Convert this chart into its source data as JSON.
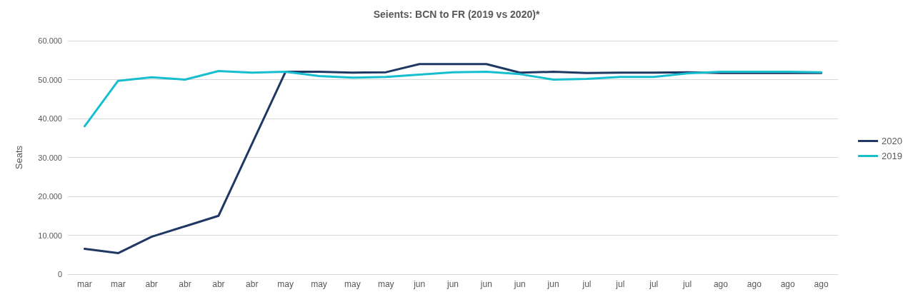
{
  "chart_data": {
    "type": "line",
    "title": "Seients: BCN to FR (2019 vs 2020)*",
    "ylabel": "Seats",
    "categories": [
      "mar",
      "mar",
      "abr",
      "abr",
      "abr",
      "abr",
      "may",
      "may",
      "may",
      "may",
      "jun",
      "jun",
      "jun",
      "jun",
      "jun",
      "jul",
      "jul",
      "jul",
      "jul",
      "ago",
      "ago",
      "ago",
      "ago"
    ],
    "series": [
      {
        "name": "2020",
        "color": "#1f3864",
        "values": [
          6500,
          5400,
          9600,
          12300,
          15000,
          33500,
          52000,
          52000,
          51800,
          51900,
          54000,
          54000,
          54000,
          51800,
          52000,
          51700,
          51800,
          51800,
          51900,
          51700,
          51700,
          51700,
          51700
        ]
      },
      {
        "name": "2019",
        "color": "#17becf",
        "values": [
          38000,
          49700,
          50600,
          50000,
          52200,
          51800,
          52000,
          50900,
          50500,
          50700,
          51300,
          51900,
          52000,
          51400,
          50000,
          50200,
          50700,
          50700,
          51600,
          52000,
          52000,
          52000,
          51900
        ]
      }
    ],
    "ylim": [
      0,
      60000
    ],
    "yticks": [
      0,
      {
        "value": 10000,
        "label": "10.000"
      },
      {
        "value": 20000,
        "label": "20.000"
      },
      {
        "value": 30000,
        "label": "30.000"
      },
      {
        "value": 40000,
        "label": "40.000"
      },
      {
        "value": 50000,
        "label": "50.000"
      },
      {
        "value": 60000,
        "label": "60.000"
      }
    ],
    "grid": "y",
    "legend": "right",
    "marker": "none",
    "line_style": "solid"
  }
}
